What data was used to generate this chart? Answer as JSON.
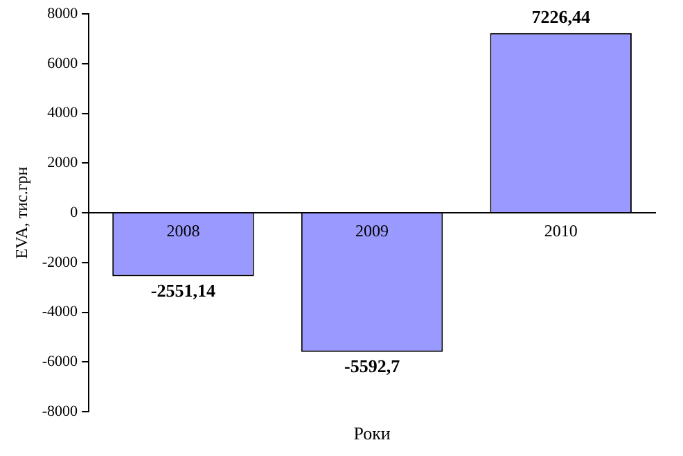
{
  "chart_data": {
    "type": "bar",
    "categories": [
      "2008",
      "2009",
      "2010"
    ],
    "values": [
      -2551.14,
      -5592.7,
      7226.44
    ],
    "color": "#9999ff",
    "value_labels": [
      "-2551,14",
      "-5592,7",
      "7226,44"
    ],
    "ylabel": "EVA, тис.грн",
    "xlabel": "Роки",
    "ylim": [
      -8000,
      8000
    ],
    "yticks": [
      -8000,
      -6000,
      -4000,
      -2000,
      0,
      2000,
      4000,
      6000,
      8000
    ],
    "grid": false,
    "legend": false
  }
}
